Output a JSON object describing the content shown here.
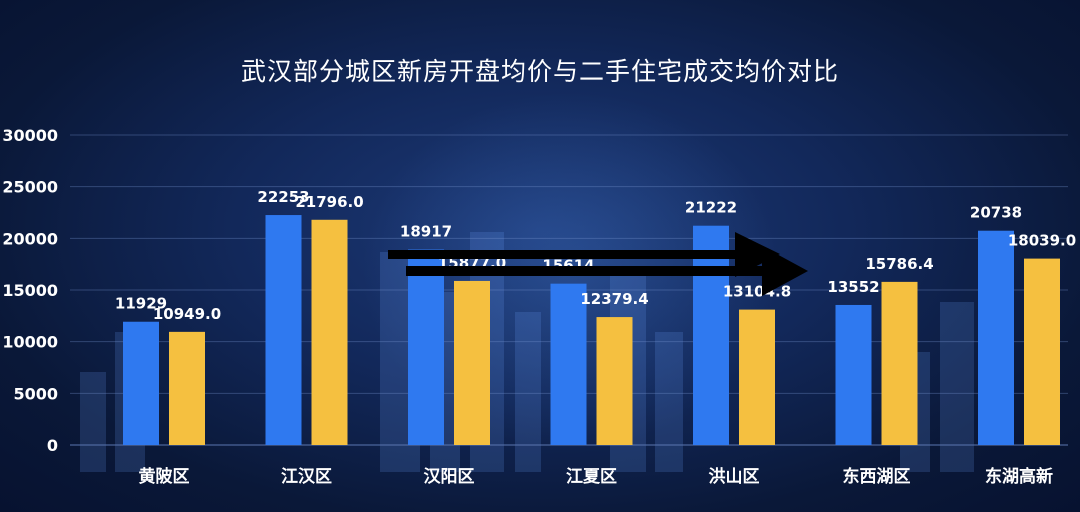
{
  "chart_data": {
    "type": "bar",
    "title": "武汉部分城区新房开盘均价与二手住宅成交均价对比",
    "categories": [
      "黄陂区",
      "江汉区",
      "汉阳区",
      "江夏区",
      "洪山区",
      "东西湖区",
      "东湖高新"
    ],
    "series": [
      {
        "color": "#2f79f0",
        "values": [
          11929,
          22253,
          18917,
          15614,
          21222,
          13552,
          20738
        ],
        "labels": [
          "11929",
          "22253",
          "18917",
          "15614",
          "21222",
          "13552",
          "20738"
        ]
      },
      {
        "color": "#f5c040",
        "values": [
          10949.0,
          21796.0,
          15877.0,
          12379.4,
          13104.8,
          15786.4,
          18039.0
        ],
        "labels": [
          "10949.0",
          "21796.0",
          "15877.0",
          "12379.4",
          "13104.8",
          "15786.4",
          "18039.0"
        ]
      }
    ],
    "ylim": [
      0,
      30000
    ],
    "yticks": [
      "0",
      "5000",
      "10000",
      "15000",
      "20000",
      "25000",
      "30000"
    ],
    "grid": true,
    "legend": "none"
  },
  "colors": {
    "background": "#0b1a3d",
    "arrow": "#000000",
    "text": "#ffffff"
  }
}
